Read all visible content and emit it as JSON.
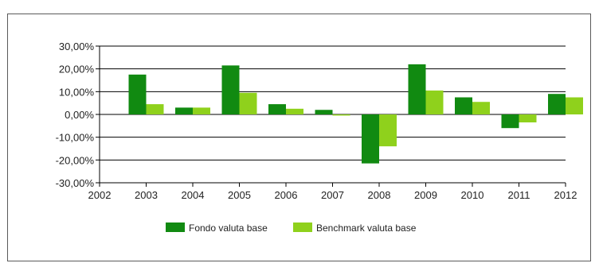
{
  "chart_data": {
    "type": "bar",
    "categories": [
      "2002",
      "2003",
      "2004",
      "2005",
      "2006",
      "2007",
      "2008",
      "2009",
      "2010",
      "2011",
      "2012"
    ],
    "series": [
      {
        "name": "Fondo valuta base",
        "color": "#118a11",
        "values": [
          null,
          17.5,
          3.0,
          21.5,
          4.5,
          2.0,
          -21.5,
          22.0,
          7.5,
          -6.0,
          9.0
        ]
      },
      {
        "name": "Benchmark valuta base",
        "color": "#8fd11c",
        "values": [
          null,
          4.5,
          3.0,
          9.5,
          2.5,
          -0.5,
          -14.0,
          10.5,
          5.5,
          -3.5,
          7.5
        ]
      }
    ],
    "y_ticks": [
      "30,00%",
      "20,00%",
      "10,00%",
      "0,00%",
      "-10,00%",
      "-20,00%",
      "-30,00%"
    ],
    "ylim": [
      -30,
      30
    ],
    "grid": true,
    "legend": "bottom",
    "title": "",
    "xlabel": "",
    "ylabel": ""
  }
}
